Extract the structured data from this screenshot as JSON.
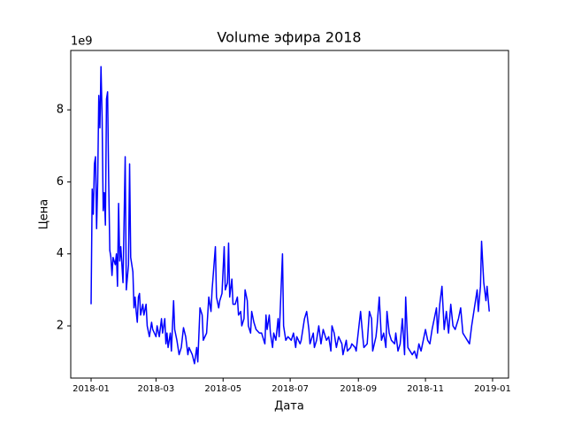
{
  "chart_data": {
    "type": "line",
    "title": "Volume эфира 2018",
    "xlabel": "Дата",
    "ylabel": "Цена",
    "y_offset_label": "1e9",
    "xlim": [
      -18.5,
      379.5
    ],
    "ylim": [
      0.55,
      9.65
    ],
    "xticks": [
      {
        "value": 0,
        "label": "2018-01"
      },
      {
        "value": 59,
        "label": "2018-03"
      },
      {
        "value": 120,
        "label": "2018-05"
      },
      {
        "value": 181,
        "label": "2018-07"
      },
      {
        "value": 243,
        "label": "2018-09"
      },
      {
        "value": 304,
        "label": "2018-11"
      },
      {
        "value": 365,
        "label": "2019-01"
      }
    ],
    "yticks": [
      2,
      4,
      6,
      8
    ],
    "series": [
      {
        "color": "#0000ff",
        "x": [
          0,
          1,
          2,
          3,
          4,
          5,
          6,
          7,
          8,
          9,
          10,
          11,
          12,
          13,
          14,
          15,
          16,
          17,
          18,
          19,
          20,
          22,
          23,
          24,
          25,
          26,
          27,
          29,
          31,
          32,
          34,
          35,
          36,
          38,
          39,
          40,
          41,
          42,
          43,
          44,
          45,
          47,
          48,
          50,
          51,
          53,
          55,
          56,
          59,
          60,
          62,
          64,
          65,
          67,
          68,
          69,
          70,
          72,
          73,
          75,
          76,
          78,
          80,
          82,
          84,
          86,
          88,
          89,
          92,
          94,
          96,
          97,
          99,
          101,
          102,
          105,
          107,
          109,
          110,
          113,
          114,
          116,
          117,
          119,
          121,
          122,
          124,
          125,
          126,
          128,
          129,
          131,
          133,
          134,
          136,
          137,
          139,
          140,
          142,
          143,
          145,
          146,
          148,
          150,
          153,
          155,
          158,
          159,
          160,
          162,
          163,
          165,
          166,
          168,
          170,
          171,
          174,
          175,
          177,
          179,
          182,
          184,
          186,
          187,
          190,
          191,
          194,
          196,
          198,
          199,
          202,
          203,
          205,
          207,
          209,
          211,
          214,
          216,
          218,
          219,
          221,
          223,
          225,
          228,
          229,
          232,
          233,
          236,
          237,
          240,
          241,
          245,
          247,
          248,
          251,
          253,
          255,
          256,
          259,
          260,
          262,
          264,
          266,
          268,
          269,
          271,
          273,
          276,
          277,
          279,
          281,
          283,
          285,
          286,
          288,
          290,
          292,
          294,
          296,
          298,
          300,
          302,
          304,
          306,
          308,
          310,
          314,
          315,
          317,
          319,
          321,
          323,
          325,
          327,
          329,
          331,
          334,
          336,
          338,
          340,
          342,
          344,
          346,
          348,
          351,
          352,
          354,
          355,
          357,
          359,
          360,
          362
        ],
        "values": [
          2.6,
          5.8,
          5.1,
          6.5,
          6.7,
          4.7,
          6.0,
          8.4,
          7.5,
          9.2,
          7.8,
          5.2,
          5.7,
          4.8,
          8.3,
          8.5,
          6.0,
          4.1,
          3.9,
          3.4,
          3.9,
          3.7,
          4.0,
          3.1,
          5.4,
          3.8,
          4.2,
          3.2,
          6.7,
          3.0,
          3.7,
          6.5,
          3.9,
          3.5,
          2.5,
          2.8,
          2.4,
          2.1,
          2.8,
          2.9,
          2.3,
          2.6,
          2.3,
          2.6,
          2.0,
          1.7,
          2.1,
          1.9,
          1.7,
          2.0,
          1.7,
          2.2,
          1.8,
          2.2,
          1.5,
          1.8,
          1.4,
          1.8,
          1.3,
          2.7,
          1.9,
          1.6,
          1.2,
          1.4,
          1.95,
          1.7,
          1.2,
          1.4,
          1.2,
          0.95,
          1.4,
          1.0,
          2.5,
          2.3,
          1.6,
          1.8,
          2.8,
          2.4,
          3.0,
          4.2,
          2.8,
          2.5,
          2.7,
          2.9,
          4.2,
          3.0,
          3.2,
          4.3,
          2.8,
          3.3,
          2.6,
          2.6,
          2.8,
          2.3,
          2.4,
          2.0,
          2.2,
          3.0,
          2.7,
          2.0,
          1.8,
          2.4,
          2.1,
          1.9,
          1.8,
          1.8,
          1.5,
          2.3,
          1.9,
          2.3,
          1.8,
          1.4,
          1.8,
          1.6,
          2.2,
          1.7,
          4.0,
          2.0,
          1.6,
          1.7,
          1.6,
          1.8,
          1.4,
          1.7,
          1.5,
          1.6,
          2.2,
          2.4,
          1.9,
          1.5,
          1.8,
          1.4,
          1.6,
          2.0,
          1.5,
          1.9,
          1.6,
          1.7,
          1.3,
          2.0,
          1.8,
          1.4,
          1.7,
          1.5,
          1.2,
          1.6,
          1.3,
          1.4,
          1.5,
          1.4,
          1.3,
          2.4,
          1.7,
          1.4,
          1.5,
          2.4,
          2.2,
          1.3,
          1.7,
          2.0,
          2.8,
          1.6,
          1.8,
          1.4,
          2.4,
          1.8,
          1.6,
          1.5,
          1.8,
          1.3,
          1.5,
          2.2,
          1.2,
          2.8,
          1.4,
          1.3,
          1.2,
          1.3,
          1.1,
          1.5,
          1.3,
          1.6,
          1.9,
          1.6,
          1.5,
          1.9,
          2.5,
          1.8,
          2.6,
          3.1,
          1.9,
          2.4,
          1.8,
          2.6,
          2.0,
          1.9,
          2.2,
          2.5,
          1.8,
          1.7,
          1.6,
          1.5,
          2.0,
          2.4,
          3.0,
          2.4,
          3.1,
          4.35,
          3.2,
          2.7,
          3.1,
          2.4
        ]
      }
    ]
  }
}
